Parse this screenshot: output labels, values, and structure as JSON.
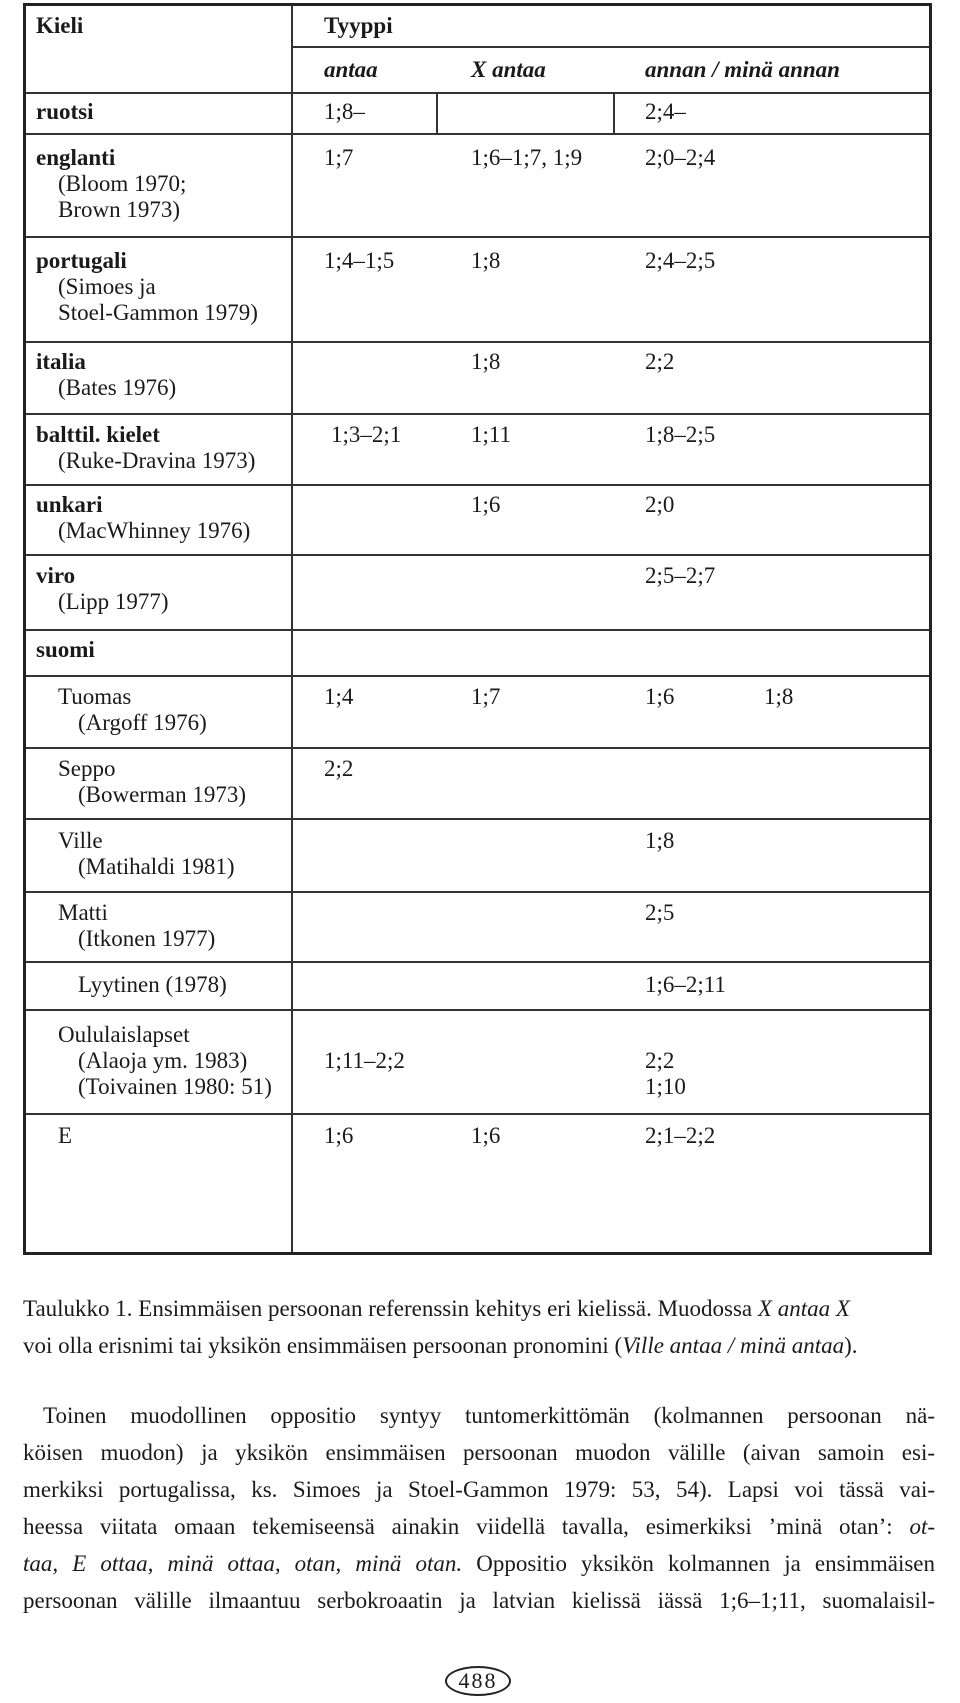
{
  "table": {
    "col_language": "Kieli",
    "col_type": "Tyyppi",
    "sub": [
      "antaa",
      "X antaa",
      "annan / minä annan"
    ],
    "rows": [
      {
        "lang": "ruotsi",
        "a": "1;8–",
        "b": "",
        "c": "2;4–"
      },
      {
        "lang": "englanti",
        "cite1": "(Bloom 1970;",
        "cite2": "Brown 1973)",
        "a": "1;7",
        "b": "1;6–1;7, 1;9",
        "c": "2;0–2;4"
      },
      {
        "lang": "portugali",
        "cite1": "(Simoes ja",
        "cite2": "Stoel-Gammon 1979)",
        "a": "1;4–1;5",
        "b": "1;8",
        "c": "2;4–2;5"
      },
      {
        "lang": "italia",
        "cite1": "(Bates 1976)",
        "b": "1;8",
        "c": "2;2"
      },
      {
        "lang": "balttil. kielet",
        "cite1": "(Ruke-Dravina 1973)",
        "a": "1;3–2;1",
        "b": "1;11",
        "c": "1;8–2;5"
      },
      {
        "lang": "unkari",
        "cite1": "(MacWhinney 1976)",
        "b": "1;6",
        "c": "2;0"
      },
      {
        "lang": "viro",
        "cite1": "(Lipp 1977)",
        "c": "2;5–2;7"
      },
      {
        "lang": "suomi"
      }
    ],
    "subrows": [
      {
        "name": "Tuomas",
        "cite": "(Argoff 1976)",
        "a": "1;4",
        "b": "1;7",
        "c": "1;6",
        "d": "1;8"
      },
      {
        "name": "Seppo",
        "cite": "(Bowerman 1973)",
        "a": "2;2"
      },
      {
        "name": "Ville",
        "cite": "(Matihaldi 1981)",
        "c": "1;8"
      },
      {
        "name": "Matti",
        "cite": "(Itkonen 1977)",
        "c": "2;5"
      },
      {
        "name": "Lyytinen (1978)",
        "c": "1;6–2;11"
      },
      {
        "name": "Oululaislapset",
        "cite": "(Alaoja ym. 1983)",
        "cite2": "(Toivainen 1980: 51)",
        "a": "1;11–2;2",
        "c": "2;2",
        "c2": "1;10"
      },
      {
        "name": "E",
        "a": "1;6",
        "b": "1;6",
        "c": "2;1–2;2"
      }
    ]
  },
  "caption": {
    "t1": "Taulukko 1. Ensimmäisen persoonan referenssin kehitys eri kielissä. Muodossa ",
    "t1_i": "X antaa X",
    "t2": "voi olla erisnimi tai yksikön ensimmäisen persoonan pronomini (",
    "t2_i": "Ville antaa / minä antaa",
    "t2_end": ")."
  },
  "paragraph": {
    "l1": "Toinen muodollinen oppositio syntyy tuntomerkittömän (kolmannen persoonan nä-",
    "l2": "köisen muodon) ja yksikön ensimmäisen persoonan muodon välille (aivan samoin esi-",
    "l3": "merkiksi portugalissa, ks. Simoes ja Stoel-Gammon 1979: 53, 54). Lapsi voi tässä vai-",
    "l4_a": "heessa viitata omaan tekemiseensä ainakin viidellä tavalla, esimerkiksi ’minä otan’: ",
    "l4_i": "ot-",
    "l5_i": "taa, E ottaa, minä ottaa, otan, minä otan.",
    "l5_b": " Oppositio yksikön kolmannen ja ensimmäisen",
    "l6": "persoonan välille ilmaantuu serbokroaatin ja latvian kielissä iässä 1;6–1;11, suomalaisil-"
  },
  "page_number": "488"
}
